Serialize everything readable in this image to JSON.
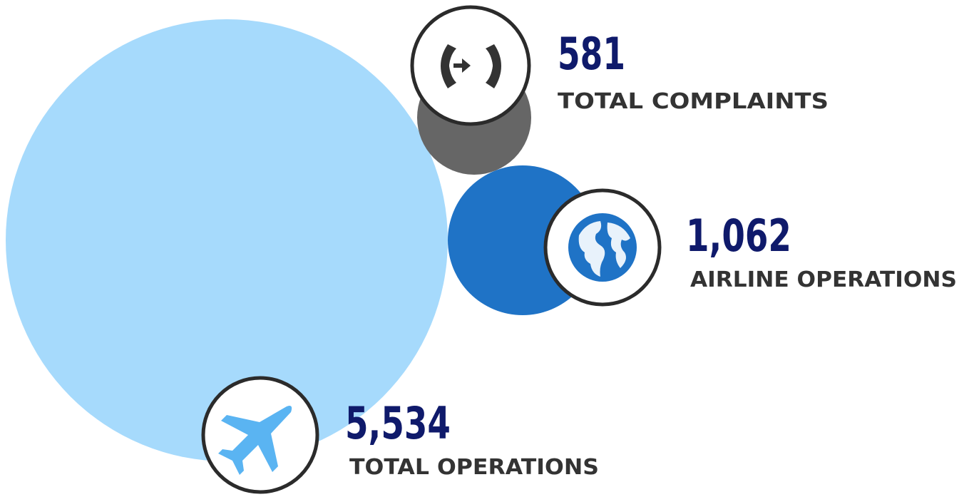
{
  "stats": [
    {
      "value": "581",
      "label": "TOTAL COMPLAINTS"
    },
    {
      "value": "1,062",
      "label": "AIRLINE OPERATIONS"
    },
    {
      "value": "5,534",
      "label": "TOTAL OPERATIONS"
    }
  ]
}
